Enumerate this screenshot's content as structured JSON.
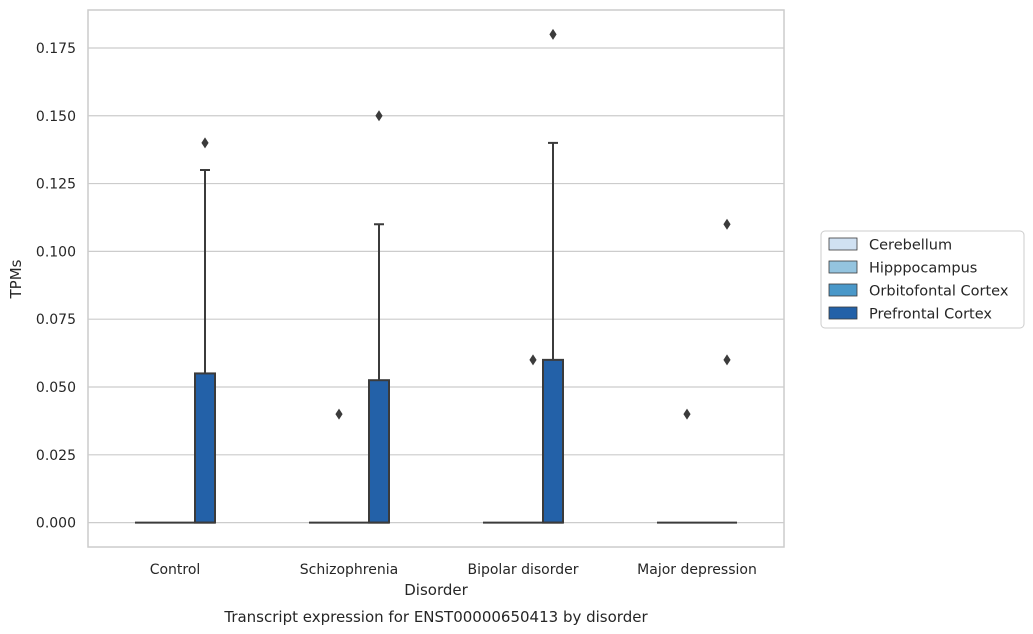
{
  "chart_data": {
    "type": "box",
    "title": "Transcript expression for ENST00000650413 by disorder",
    "xlabel": "Disorder",
    "ylabel": "TPMs",
    "categories": [
      "Control",
      "Schizophrenia",
      "Bipolar disorder",
      "Major depression"
    ],
    "ylim": [
      -0.009,
      0.189
    ],
    "yticks": [
      0.0,
      0.025,
      0.05,
      0.075,
      0.1,
      0.125,
      0.15,
      0.175
    ],
    "ytick_labels": [
      "0.000",
      "0.025",
      "0.050",
      "0.075",
      "0.100",
      "0.125",
      "0.150",
      "0.175"
    ],
    "grid": "horizontal",
    "legend_position": "right",
    "series": [
      {
        "name": "Cerebellum",
        "color": "#d0e1f2",
        "boxes": [
          {
            "q1": 0,
            "median": 0,
            "q3": 0,
            "whisker_low": 0,
            "whisker_high": 0,
            "outliers": []
          },
          {
            "q1": 0,
            "median": 0,
            "q3": 0,
            "whisker_low": 0,
            "whisker_high": 0,
            "outliers": []
          },
          {
            "q1": 0,
            "median": 0,
            "q3": 0,
            "whisker_low": 0,
            "whisker_high": 0,
            "outliers": []
          },
          {
            "q1": 0,
            "median": 0,
            "q3": 0,
            "whisker_low": 0,
            "whisker_high": 0,
            "outliers": []
          }
        ]
      },
      {
        "name": "Hipppocampus",
        "color": "#94c4df",
        "boxes": [
          {
            "q1": 0,
            "median": 0,
            "q3": 0,
            "whisker_low": 0,
            "whisker_high": 0,
            "outliers": []
          },
          {
            "q1": 0,
            "median": 0,
            "q3": 0,
            "whisker_low": 0,
            "whisker_high": 0,
            "outliers": [
              0.04
            ]
          },
          {
            "q1": 0,
            "median": 0,
            "q3": 0,
            "whisker_low": 0,
            "whisker_high": 0,
            "outliers": []
          },
          {
            "q1": 0,
            "median": 0,
            "q3": 0,
            "whisker_low": 0,
            "whisker_high": 0,
            "outliers": [
              0.04
            ]
          }
        ]
      },
      {
        "name": "Orbitofontal Cortex",
        "color": "#4a98c9",
        "boxes": [
          {
            "q1": 0,
            "median": 0,
            "q3": 0,
            "whisker_low": 0,
            "whisker_high": 0,
            "outliers": []
          },
          {
            "q1": 0,
            "median": 0,
            "q3": 0,
            "whisker_low": 0,
            "whisker_high": 0,
            "outliers": []
          },
          {
            "q1": 0,
            "median": 0,
            "q3": 0,
            "whisker_low": 0,
            "whisker_high": 0,
            "outliers": [
              0.06
            ]
          },
          {
            "q1": 0,
            "median": 0,
            "q3": 0,
            "whisker_low": 0,
            "whisker_high": 0,
            "outliers": []
          }
        ]
      },
      {
        "name": "Prefrontal Cortex",
        "color": "#2361a8",
        "boxes": [
          {
            "q1": 0,
            "median": 0,
            "q3": 0.055,
            "whisker_low": 0,
            "whisker_high": 0.13,
            "outliers": [
              0.14
            ]
          },
          {
            "q1": 0,
            "median": 0,
            "q3": 0.0525,
            "whisker_low": 0,
            "whisker_high": 0.11,
            "outliers": [
              0.15
            ]
          },
          {
            "q1": 0,
            "median": 0,
            "q3": 0.06,
            "whisker_low": 0,
            "whisker_high": 0.14,
            "outliers": [
              0.18
            ]
          },
          {
            "q1": 0,
            "median": 0,
            "q3": 0,
            "whisker_low": 0,
            "whisker_high": 0,
            "outliers": [
              0.06,
              0.11
            ]
          }
        ]
      }
    ]
  }
}
